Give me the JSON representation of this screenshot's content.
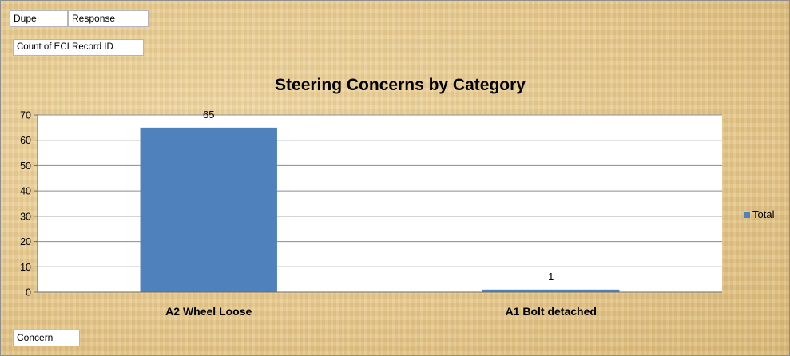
{
  "filters": {
    "dupe_label": "Dupe",
    "response_label": "Response",
    "values_label": "Count of  ECI Record ID",
    "axis_field_label": "Concern"
  },
  "colors": {
    "bar": "#4f81bd",
    "plot_bg": "#ffffff",
    "grid": "#8c8c8c"
  },
  "chart_data": {
    "type": "bar",
    "title": "Steering Concerns by Category",
    "categories": [
      "A2 Wheel Loose",
      "A1 Bolt detached"
    ],
    "series": [
      {
        "name": "Total",
        "values": [
          65,
          1
        ]
      }
    ],
    "data_labels": [
      "65",
      "1"
    ],
    "ylim": [
      0,
      70
    ],
    "yticks": [
      0,
      10,
      20,
      30,
      40,
      50,
      60,
      70
    ],
    "grid": true,
    "legend_position": "right"
  }
}
